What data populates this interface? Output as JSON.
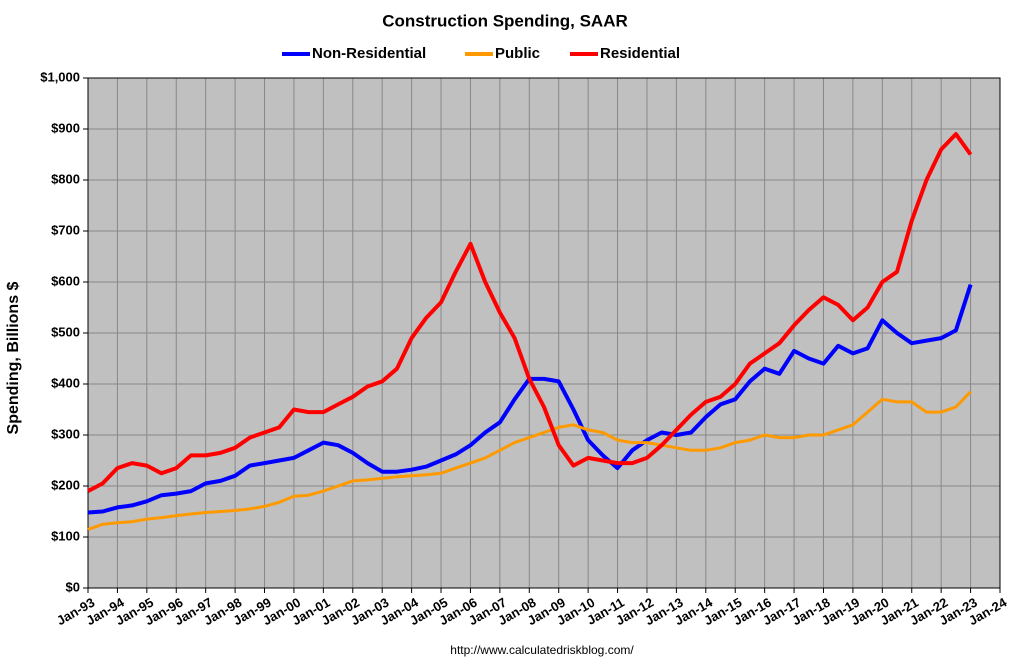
{
  "chart_data": {
    "type": "line",
    "title": "Construction Spending, SAAR",
    "y_label": "Spending, Billions $",
    "source": "http://www.calculatedriskblog.com/",
    "x": [
      1993,
      1993.5,
      1994,
      1994.5,
      1995,
      1995.5,
      1996,
      1996.5,
      1997,
      1997.5,
      1998,
      1998.5,
      1999,
      1999.5,
      2000,
      2000.5,
      2001,
      2001.5,
      2002,
      2002.5,
      2003,
      2003.5,
      2004,
      2004.5,
      2005,
      2005.5,
      2006,
      2006.5,
      2007,
      2007.5,
      2008,
      2008.5,
      2009,
      2009.5,
      2010,
      2010.5,
      2011,
      2011.5,
      2012,
      2012.5,
      2013,
      2013.5,
      2014,
      2014.5,
      2015,
      2015.5,
      2016,
      2016.5,
      2017,
      2017.5,
      2018,
      2018.5,
      2019,
      2019.5,
      2020,
      2020.5,
      2021,
      2021.5,
      2022,
      2022.5,
      2023
    ],
    "series": [
      {
        "name": "Non-Residential",
        "color": "#0000ff",
        "values": [
          148,
          150,
          158,
          162,
          170,
          182,
          185,
          190,
          205,
          210,
          220,
          240,
          245,
          250,
          255,
          270,
          285,
          280,
          265,
          245,
          228,
          228,
          232,
          238,
          250,
          262,
          280,
          305,
          325,
          370,
          410,
          410,
          405,
          350,
          290,
          260,
          235,
          270,
          290,
          305,
          300,
          305,
          335,
          360,
          370,
          405,
          430,
          420,
          465,
          450,
          440,
          475,
          460,
          470,
          525,
          500,
          480,
          485,
          490,
          505,
          595
        ]
      },
      {
        "name": "Public",
        "color": "#ff9900",
        "values": [
          115,
          125,
          128,
          130,
          135,
          138,
          142,
          145,
          148,
          150,
          152,
          155,
          160,
          168,
          180,
          182,
          190,
          200,
          210,
          212,
          215,
          218,
          220,
          222,
          225,
          235,
          245,
          255,
          270,
          285,
          295,
          305,
          315,
          320,
          310,
          305,
          290,
          285,
          285,
          280,
          275,
          270,
          270,
          275,
          285,
          290,
          300,
          295,
          295,
          300,
          300,
          310,
          320,
          345,
          370,
          365,
          365,
          345,
          345,
          355,
          385
        ]
      },
      {
        "name": "Residential",
        "color": "#ff0000",
        "values": [
          190,
          205,
          235,
          245,
          240,
          225,
          235,
          260,
          260,
          265,
          275,
          295,
          305,
          315,
          350,
          345,
          345,
          360,
          375,
          395,
          405,
          430,
          490,
          530,
          560,
          620,
          675,
          600,
          540,
          490,
          410,
          355,
          280,
          240,
          255,
          250,
          245,
          245,
          255,
          280,
          310,
          340,
          365,
          375,
          400,
          440,
          460,
          480,
          515,
          545,
          570,
          555,
          525,
          550,
          600,
          620,
          720,
          800,
          860,
          890,
          850
        ]
      }
    ],
    "xlim": [
      1993,
      2024
    ],
    "xticks": [
      {
        "value": 1993,
        "label": "Jan-93"
      },
      {
        "value": 1994,
        "label": "Jan-94"
      },
      {
        "value": 1995,
        "label": "Jan-95"
      },
      {
        "value": 1996,
        "label": "Jan-96"
      },
      {
        "value": 1997,
        "label": "Jan-97"
      },
      {
        "value": 1998,
        "label": "Jan-98"
      },
      {
        "value": 1999,
        "label": "Jan-99"
      },
      {
        "value": 2000,
        "label": "Jan-00"
      },
      {
        "value": 2001,
        "label": "Jan-01"
      },
      {
        "value": 2002,
        "label": "Jan-02"
      },
      {
        "value": 2003,
        "label": "Jan-03"
      },
      {
        "value": 2004,
        "label": "Jan-04"
      },
      {
        "value": 2005,
        "label": "Jan-05"
      },
      {
        "value": 2006,
        "label": "Jan-06"
      },
      {
        "value": 2007,
        "label": "Jan-07"
      },
      {
        "value": 2008,
        "label": "Jan-08"
      },
      {
        "value": 2009,
        "label": "Jan-09"
      },
      {
        "value": 2010,
        "label": "Jan-10"
      },
      {
        "value": 2011,
        "label": "Jan-11"
      },
      {
        "value": 2012,
        "label": "Jan-12"
      },
      {
        "value": 2013,
        "label": "Jan-13"
      },
      {
        "value": 2014,
        "label": "Jan-14"
      },
      {
        "value": 2015,
        "label": "Jan-15"
      },
      {
        "value": 2016,
        "label": "Jan-16"
      },
      {
        "value": 2017,
        "label": "Jan-17"
      },
      {
        "value": 2018,
        "label": "Jan-18"
      },
      {
        "value": 2019,
        "label": "Jan-19"
      },
      {
        "value": 2020,
        "label": "Jan-20"
      },
      {
        "value": 2021,
        "label": "Jan-21"
      },
      {
        "value": 2022,
        "label": "Jan-22"
      },
      {
        "value": 2023,
        "label": "Jan-23"
      },
      {
        "value": 2024,
        "label": "Jan-24"
      }
    ],
    "ylim": [
      0,
      1000
    ],
    "yticks": [
      {
        "value": 0,
        "label": "$0"
      },
      {
        "value": 100,
        "label": "$100"
      },
      {
        "value": 200,
        "label": "$200"
      },
      {
        "value": 300,
        "label": "$300"
      },
      {
        "value": 400,
        "label": "$400"
      },
      {
        "value": 500,
        "label": "$500"
      },
      {
        "value": 600,
        "label": "$600"
      },
      {
        "value": 700,
        "label": "$700"
      },
      {
        "value": 800,
        "label": "$800"
      },
      {
        "value": 900,
        "label": "$900"
      },
      {
        "value": 1000,
        "label": "$1,000"
      }
    ],
    "grid": true,
    "legend": "top"
  }
}
